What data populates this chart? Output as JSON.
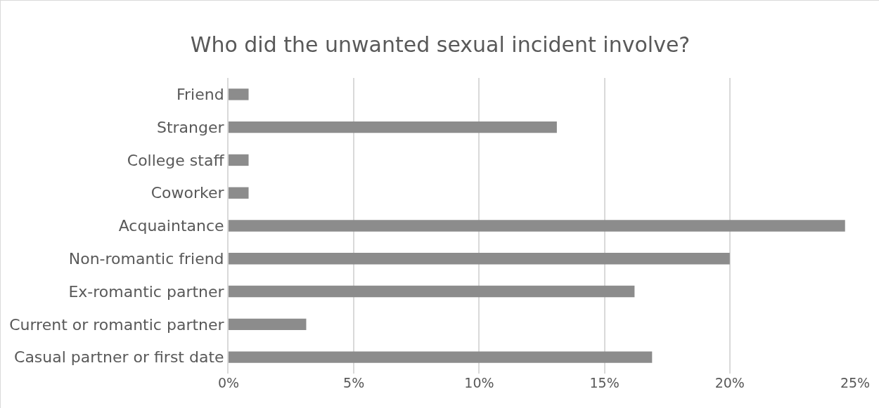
{
  "chart_data": {
    "type": "bar",
    "orientation": "horizontal",
    "title": "Who did the unwanted sexual incident involve?",
    "categories": [
      "Friend",
      "Stranger",
      "College staff",
      "Coworker",
      "Acquaintance",
      "Non-romantic friend",
      "Ex-romantic partner",
      "Current or romantic partner",
      "Casual partner or first date"
    ],
    "values": [
      0.8,
      13.1,
      0.8,
      0.8,
      24.6,
      20.0,
      16.2,
      3.1,
      16.9
    ],
    "color": "#8c8c8c",
    "xlim": [
      0,
      25
    ],
    "xticks": [
      {
        "value": 0,
        "label": "0%"
      },
      {
        "value": 5,
        "label": "5%"
      },
      {
        "value": 10,
        "label": "10%"
      },
      {
        "value": 15,
        "label": "15%"
      },
      {
        "value": 20,
        "label": "20%"
      },
      {
        "value": 25,
        "label": "25%"
      }
    ],
    "grid": "x"
  }
}
